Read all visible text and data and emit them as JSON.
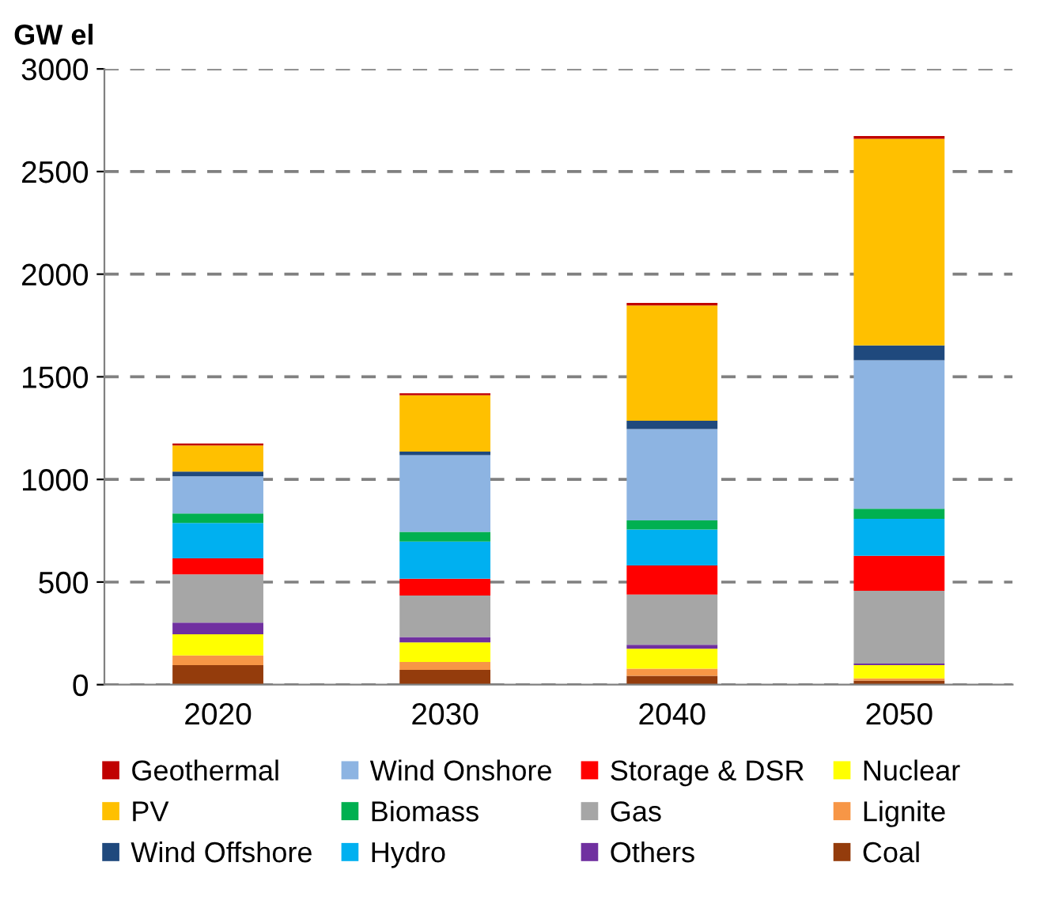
{
  "chart_data": {
    "type": "bar",
    "stacked": true,
    "ylabel": "GW el",
    "categories": [
      "2020",
      "2030",
      "2040",
      "2050"
    ],
    "series": [
      {
        "name": "Coal",
        "color": "#943c0c",
        "values": [
          95,
          72,
          43,
          20
        ]
      },
      {
        "name": "Lignite",
        "color": "#f79646",
        "values": [
          47,
          39,
          35,
          11
        ]
      },
      {
        "name": "Nuclear",
        "color": "#ffff00",
        "values": [
          103,
          95,
          97,
          64
        ]
      },
      {
        "name": "Others",
        "color": "#7030a0",
        "values": [
          57,
          26,
          19,
          8
        ]
      },
      {
        "name": "Gas",
        "color": "#a6a6a6",
        "values": [
          235,
          202,
          245,
          354
        ]
      },
      {
        "name": "Storage & DSR",
        "color": "#ff0000",
        "values": [
          78,
          82,
          142,
          171
        ]
      },
      {
        "name": "Hydro",
        "color": "#00b0f0",
        "values": [
          173,
          181,
          175,
          180
        ]
      },
      {
        "name": "Biomass",
        "color": "#00b050",
        "values": [
          46,
          47,
          44,
          49
        ]
      },
      {
        "name": "Wind Onshore",
        "color": "#8db4e2",
        "values": [
          181,
          374,
          445,
          724
        ]
      },
      {
        "name": "Wind Offshore",
        "color": "#1f497d",
        "values": [
          23,
          18,
          41,
          72
        ]
      },
      {
        "name": "PV",
        "color": "#ffc000",
        "values": [
          127,
          274,
          561,
          1007
        ]
      },
      {
        "name": "Geothermal",
        "color": "#c00000",
        "values": [
          10,
          10,
          13,
          13
        ]
      }
    ],
    "ylim": [
      0,
      3000
    ],
    "yticks": [
      0,
      500,
      1000,
      1500,
      2000,
      2500,
      3000
    ],
    "grid": "y",
    "line_style": "dashed",
    "legend": "bottom"
  }
}
